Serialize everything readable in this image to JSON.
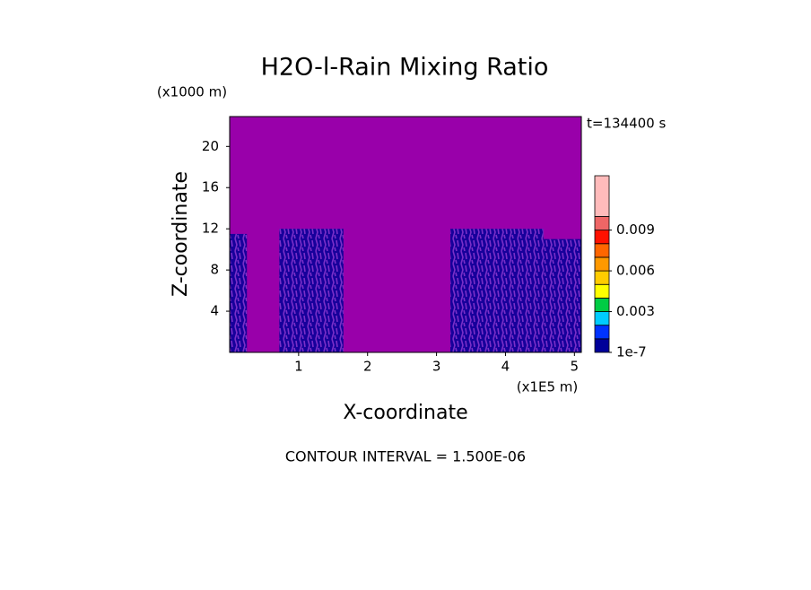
{
  "chart_data": {
    "type": "contour",
    "title": "H2O-l-Rain Mixing Ratio",
    "y_unit": "(x1000 m)",
    "time_label": "t=134400 s",
    "x_unit": "(x1E5 m)",
    "xlabel": "X-coordinate",
    "ylabel": "Z-coordinate",
    "footer": "CONTOUR INTERVAL = 1.500E-06",
    "xlim": [
      0,
      5.1
    ],
    "ylim": [
      0,
      22.9
    ],
    "xticks": [
      1,
      2,
      3,
      4,
      5
    ],
    "yticks": [
      4,
      8,
      12,
      16,
      20
    ],
    "background_color": "#9900aa",
    "regions": [
      {
        "x": [
          0,
          0.25
        ],
        "z": [
          0,
          11.5
        ],
        "value": 1e-07
      },
      {
        "x": [
          0.72,
          1.65
        ],
        "z": [
          0,
          12
        ],
        "value": 1e-07
      },
      {
        "x": [
          3.2,
          4.55
        ],
        "z": [
          0,
          12
        ],
        "value": 1e-07
      },
      {
        "x": [
          4.55,
          5.1
        ],
        "z": [
          0,
          11
        ],
        "value": 1e-07
      }
    ],
    "colorbar": {
      "levels": [
        1e-07,
        0.001,
        0.002,
        0.003,
        0.004,
        0.005,
        0.006,
        0.007,
        0.008,
        0.009,
        0.01,
        0.013
      ],
      "colors": [
        "#000099",
        "#0033ff",
        "#00ccff",
        "#00cc44",
        "#ffff00",
        "#ffcc00",
        "#ff9900",
        "#ff6600",
        "#ff1100",
        "#ee6666",
        "#ffbbbb"
      ],
      "ticks": [
        1e-07,
        0.003,
        0.006,
        0.009
      ]
    }
  }
}
